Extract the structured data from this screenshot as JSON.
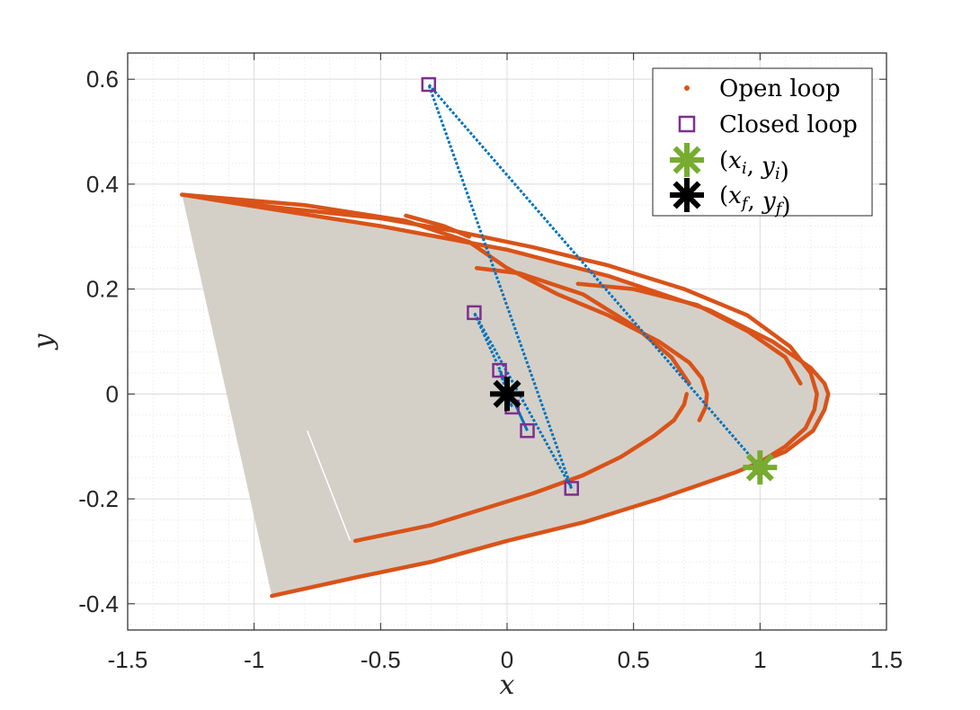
{
  "chart_data": {
    "type": "scatter",
    "xlabel": "x",
    "ylabel": "y",
    "xlim": [
      -1.5,
      1.5
    ],
    "ylim": [
      -0.45,
      0.65
    ],
    "xticks": [
      -1.5,
      -1,
      -0.5,
      0,
      0.5,
      1,
      1.5
    ],
    "xtick_labels": [
      "-1.5",
      "-1",
      "-0.5",
      "0",
      "0.5",
      "1",
      "1.5"
    ],
    "yticks": [
      -0.4,
      -0.2,
      0,
      0.2,
      0.4,
      0.6
    ],
    "ytick_labels": [
      "-0.4",
      "-0.2",
      "0",
      "0.2",
      "0.4",
      "0.6"
    ],
    "grid": true,
    "minor_grid": true,
    "legend_position": "top-right",
    "colors": {
      "open_loop": "#d95319",
      "closed_loop": "#7e2f8e",
      "closed_loop_path": "#0072bd",
      "initial": "#77ac30",
      "final": "#000000",
      "region_fill": "#d4d0c8"
    },
    "series": [
      {
        "name": "Open loop",
        "marker": "dot",
        "branches": [
          {
            "x": [
              -1.285,
              -0.9,
              -0.5,
              0,
              0.4,
              0.8,
              1.05,
              1.2,
              1.255,
              1.27,
              1.255,
              1.21,
              1.1,
              0.9,
              0.6,
              0.3,
              0,
              -0.3,
              -0.6,
              -0.93
            ],
            "y": [
              0.38,
              0.35,
              0.32,
              0.275,
              0.225,
              0.16,
              0.1,
              0.05,
              0.02,
              0,
              -0.03,
              -0.07,
              -0.11,
              -0.15,
              -0.2,
              -0.245,
              -0.28,
              -0.32,
              -0.35,
              -0.385
            ]
          },
          {
            "x": [
              -1.285,
              -0.9,
              -0.5,
              -0.2,
              0.1,
              0.4,
              0.7,
              0.95,
              1.12,
              1.2,
              1.225,
              1.215,
              1.18,
              1.1,
              1.0
            ],
            "y": [
              0.38,
              0.355,
              0.335,
              0.31,
              0.28,
              0.245,
              0.2,
              0.15,
              0.09,
              0.04,
              0,
              -0.03,
              -0.065,
              -0.1,
              -0.13
            ]
          },
          {
            "x": [
              -1.285,
              -0.8,
              -0.4,
              -0.15,
              0.0,
              0.2,
              0.4,
              0.6,
              0.72,
              0.77,
              0.79,
              0.785,
              0.76
            ],
            "y": [
              0.38,
              0.36,
              0.33,
              0.29,
              0.24,
              0.19,
              0.15,
              0.1,
              0.06,
              0.03,
              0.0,
              -0.025,
              -0.05
            ]
          },
          {
            "x": [
              0.71,
              0.7,
              0.66,
              0.58,
              0.45,
              0.3,
              0.1,
              -0.1,
              -0.3,
              -0.45,
              -0.6
            ],
            "y": [
              0.0,
              -0.02,
              -0.05,
              -0.08,
              -0.12,
              -0.155,
              -0.19,
              -0.22,
              -0.25,
              -0.265,
              -0.28
            ]
          },
          {
            "x": [
              -0.12,
              0.05,
              0.3,
              0.5,
              0.65,
              0.72
            ],
            "y": [
              0.24,
              0.23,
              0.19,
              0.13,
              0.07,
              0.02
            ]
          },
          {
            "x": [
              0.28,
              0.5,
              0.75,
              0.95,
              1.1,
              1.16
            ],
            "y": [
              0.21,
              0.2,
              0.17,
              0.12,
              0.07,
              0.02
            ]
          },
          {
            "x": [
              -0.4,
              -0.25,
              -0.15
            ],
            "y": [
              0.34,
              0.32,
              0.3
            ]
          }
        ]
      },
      {
        "name": "Closed loop",
        "marker": "square",
        "x": [
          1.0,
          -0.31,
          0.255,
          -0.13,
          0.08,
          -0.03,
          0.02,
          0.0
        ],
        "y": [
          -0.14,
          0.59,
          -0.18,
          0.155,
          -0.07,
          0.045,
          -0.025,
          0.0
        ]
      },
      {
        "name": "(x_i, y_i)",
        "marker": "asterisk",
        "x": [
          1.0
        ],
        "y": [
          -0.14
        ]
      },
      {
        "name": "(x_f, y_f)",
        "marker": "asterisk",
        "x": [
          0.0
        ],
        "y": [
          0.0
        ]
      }
    ],
    "region": {
      "x": [
        -1.285,
        -0.9,
        -0.5,
        0,
        0.4,
        0.8,
        1.05,
        1.2,
        1.255,
        1.27,
        1.255,
        1.21,
        1.1,
        0.9,
        0.6,
        0.3,
        0,
        -0.3,
        -0.6,
        -0.93
      ],
      "y": [
        0.38,
        0.35,
        0.32,
        0.275,
        0.225,
        0.16,
        0.1,
        0.05,
        0.02,
        0,
        -0.03,
        -0.07,
        -0.11,
        -0.15,
        -0.2,
        -0.245,
        -0.28,
        -0.32,
        -0.35,
        -0.385
      ]
    },
    "legend": [
      {
        "label": "Open loop",
        "marker": "dot"
      },
      {
        "label": "Closed loop",
        "marker": "square"
      },
      {
        "label": "(x_i, y_i)",
        "marker": "asterisk-green"
      },
      {
        "label": "(x_f, y_f)",
        "marker": "asterisk-black"
      }
    ]
  }
}
